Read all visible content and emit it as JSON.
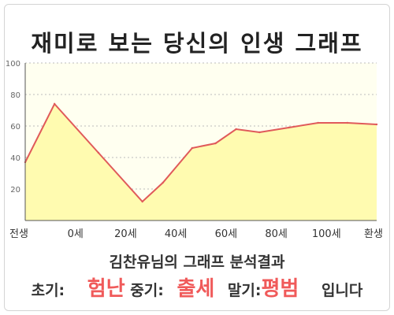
{
  "title": "재미로 보는 당신의 인생 그래프",
  "subtitle": "김찬유님의 그래프 분석결과",
  "result": {
    "early_label": "초기:",
    "early_value": "험난",
    "mid_label": "중기:",
    "mid_value": "출세",
    "late_label": "말기:",
    "late_value": "평범",
    "ending": "입니다"
  },
  "colors": {
    "line": "#e05a5a",
    "fill": "#fffbb0",
    "plot_bg": "#fffff0",
    "accent": "#f05a5a"
  },
  "chart_data": {
    "type": "area",
    "title": "",
    "xlabel": "",
    "ylabel": "",
    "ylim": [
      0,
      100
    ],
    "yticks": [
      20,
      40,
      60,
      80,
      100
    ],
    "x_tick_labels": [
      "전생",
      "0세",
      "20세",
      "40세",
      "60세",
      "80세",
      "100세",
      "환생"
    ],
    "grid": true,
    "x": [
      -10,
      0,
      15,
      30,
      37,
      47,
      55,
      62,
      70,
      80,
      90,
      100,
      110
    ],
    "series": [
      {
        "values": [
          37,
          74,
          43,
          12,
          24,
          46,
          49,
          58,
          56,
          59,
          62,
          62,
          61
        ]
      }
    ]
  }
}
